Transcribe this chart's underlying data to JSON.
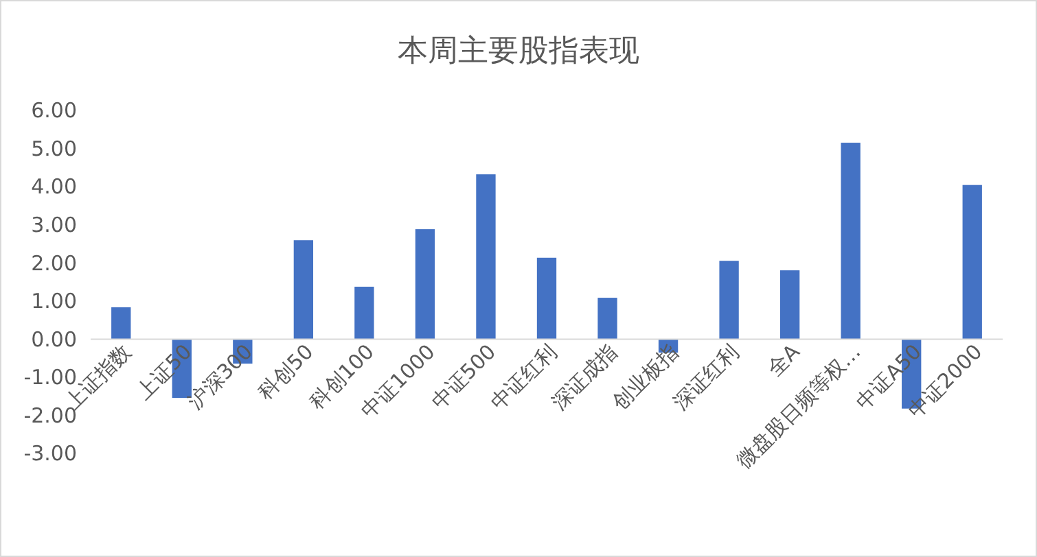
{
  "chart_data": {
    "type": "bar",
    "title": "本周主要股指表现",
    "categories": [
      "上证指数",
      "上证50",
      "沪深300",
      "科创50",
      "科创100",
      "中证1000",
      "中证500",
      "中证红利",
      "深证成指",
      "创业板指",
      "深证红利",
      "全A",
      "微盘股日频等权…",
      "中证A50",
      "中证2000"
    ],
    "values": [
      0.84,
      -1.54,
      -0.64,
      2.6,
      1.38,
      2.89,
      4.33,
      2.14,
      1.09,
      -0.35,
      2.06,
      1.81,
      5.16,
      -1.82,
      4.05
    ],
    "color": "#4472c4",
    "ylim": [
      -3,
      6
    ],
    "yticks": [
      {
        "value": -3,
        "label": "-3.00"
      },
      {
        "value": -2,
        "label": "-2.00"
      },
      {
        "value": -1,
        "label": "-1.00"
      },
      {
        "value": 0,
        "label": "0.00"
      },
      {
        "value": 1,
        "label": "1.00"
      },
      {
        "value": 2,
        "label": "2.00"
      },
      {
        "value": 3,
        "label": "3.00"
      },
      {
        "value": 4,
        "label": "4.00"
      },
      {
        "value": 5,
        "label": "5.00"
      },
      {
        "value": 6,
        "label": "6.00"
      }
    ]
  }
}
